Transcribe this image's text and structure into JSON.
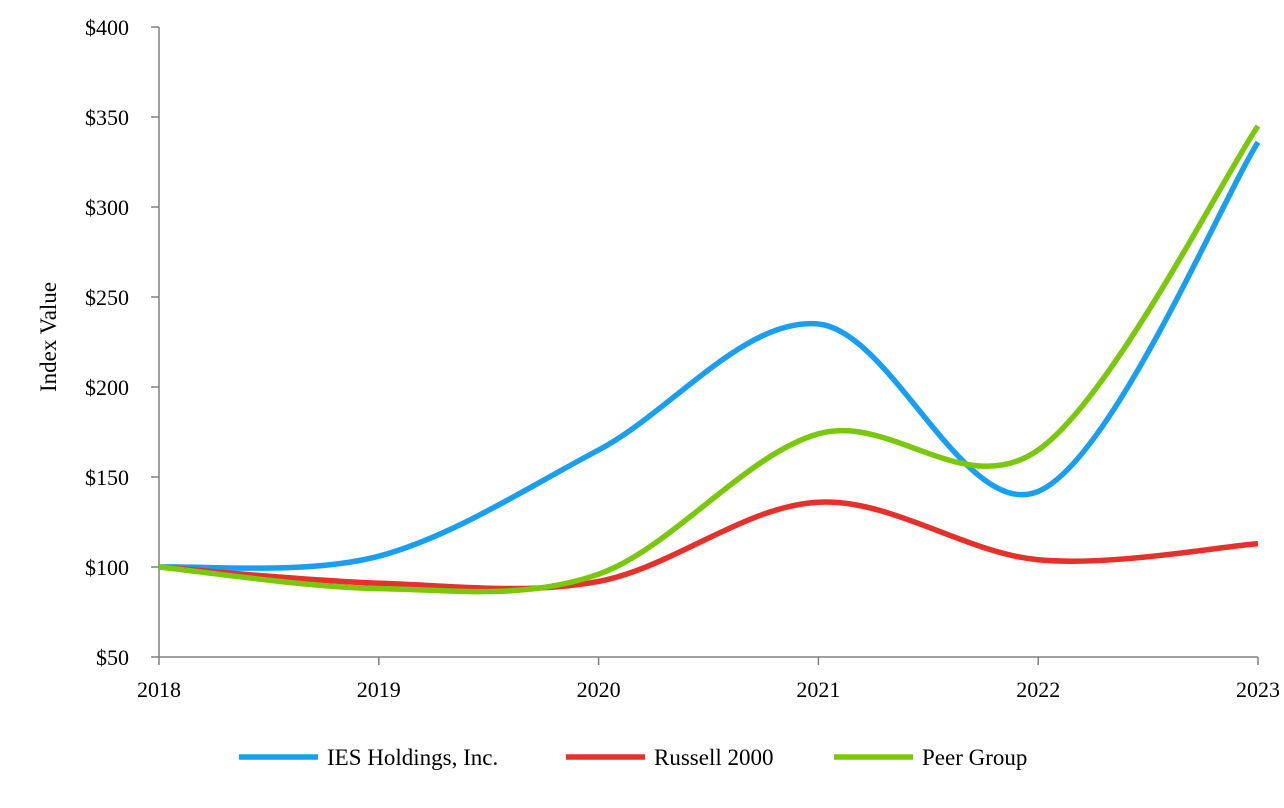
{
  "chart_data": {
    "type": "line",
    "title": "",
    "xlabel": "",
    "ylabel": "Index Value",
    "x": [
      "2018",
      "2019",
      "2020",
      "2021",
      "2022",
      "2023"
    ],
    "xlim": [
      2018,
      2023
    ],
    "ylim": [
      50,
      400
    ],
    "yticks": [
      {
        "value": 50,
        "label": "$50"
      },
      {
        "value": 100,
        "label": "$100"
      },
      {
        "value": 150,
        "label": "$150"
      },
      {
        "value": 200,
        "label": "$200"
      },
      {
        "value": 250,
        "label": "$250"
      },
      {
        "value": 300,
        "label": "$300"
      },
      {
        "value": 350,
        "label": "$350"
      },
      {
        "value": 400,
        "label": "$400"
      }
    ],
    "grid": false,
    "legend": "bottom",
    "smooth": true,
    "series": [
      {
        "name": "IES Holdings, Inc.",
        "color": "#1a9ef0",
        "values": [
          100,
          106,
          165,
          235,
          142,
          336
        ]
      },
      {
        "name": "Russell 2000",
        "color": "#e4312b",
        "values": [
          100,
          91,
          92,
          136,
          104,
          113
        ]
      },
      {
        "name": "Peer Group",
        "color": "#7ac70c",
        "values": [
          100,
          88,
          96,
          174,
          165,
          345
        ]
      }
    ]
  }
}
